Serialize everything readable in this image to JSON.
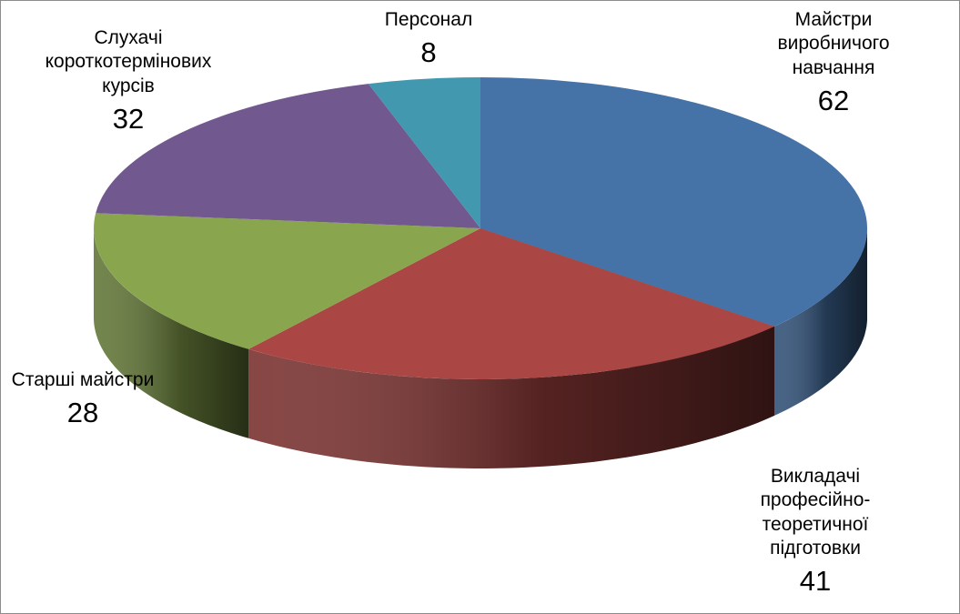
{
  "chart_data": {
    "type": "pie",
    "title": "",
    "style": "3d",
    "categories": [
      "Майстри\nвиробничого\nнавчання",
      "Викладачі\nпрофесійно-\nтеоретичної\nпідготовки",
      "Старші майстри",
      "Слухачі\nкороткотермінових\nкурсів",
      "Персонал"
    ],
    "values": [
      62,
      41,
      28,
      32,
      8
    ],
    "colors": [
      "#4572A7",
      "#AA4643",
      "#89A54E",
      "#71588F",
      "#4198AF"
    ],
    "legend": "none",
    "data_labels": true
  }
}
